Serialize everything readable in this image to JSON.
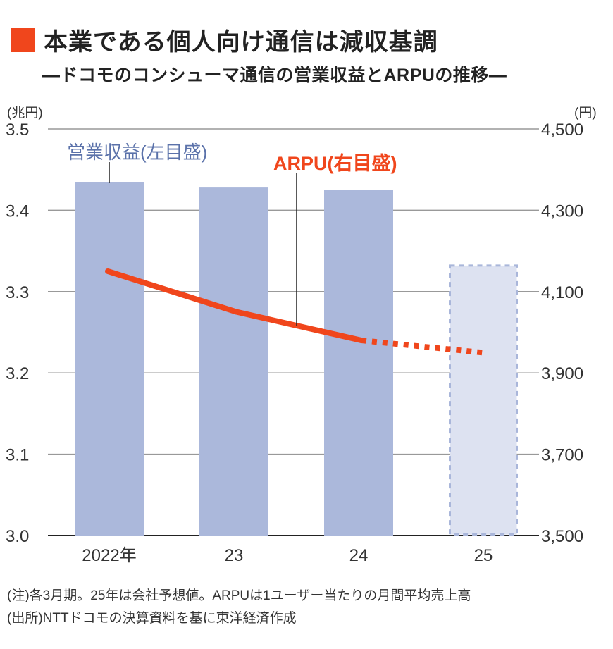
{
  "header": {
    "title": "本業である個人向け通信は減収基調",
    "subtitle": "―ドコモのコンシューマ通信の営業収益とARPUの推移―",
    "accent_color": "#f0461c"
  },
  "axes": {
    "left_unit": "(兆円)",
    "right_unit": "(円)",
    "left_ticks": [
      "3.5",
      "3.4",
      "3.3",
      "3.2",
      "3.1",
      "3.0"
    ],
    "right_ticks": [
      "4,500",
      "4,300",
      "4,100",
      "3,900",
      "3,700",
      "3,500"
    ],
    "x_ticks": [
      "2022年",
      "23",
      "24",
      "25"
    ]
  },
  "legend": {
    "bar_label": "営業収益(左目盛)",
    "line_label": "ARPU(右目盛)"
  },
  "notes": {
    "note": "(注)各3月期。25年は会社予想値。ARPUは1ユーザー当たりの月間平均売上高",
    "source": "(出所)NTTドコモの決算資料を基に東洋経済作成"
  },
  "colors": {
    "bar": "#abb8db",
    "bar_forecast": "#dde2f1",
    "bar_forecast_border": "#a9b6da",
    "line": "#f0461c",
    "grid": "#999999"
  },
  "chart_data": {
    "type": "bar+line",
    "title": "本業である個人向け通信は減収基調",
    "subtitle": "ドコモのコンシューマ通信の営業収益とARPUの推移",
    "categories": [
      "2022",
      "2023",
      "2024",
      "2025"
    ],
    "series": [
      {
        "name": "営業収益(左目盛)",
        "type": "bar",
        "axis": "left",
        "unit": "兆円",
        "values": [
          3.435,
          3.428,
          3.425,
          3.332
        ],
        "forecast": [
          false,
          false,
          false,
          true
        ]
      },
      {
        "name": "ARPU(右目盛)",
        "type": "line",
        "axis": "right",
        "unit": "円",
        "values": [
          4150,
          4050,
          3980,
          3950
        ],
        "forecast": [
          false,
          false,
          false,
          true
        ]
      }
    ],
    "xlabel": "",
    "ylabel_left": "兆円",
    "ylabel_right": "円",
    "ylim_left": [
      3.0,
      3.5
    ],
    "ylim_right": [
      3500,
      4500
    ],
    "grid": true,
    "legend_position": "inline annotations"
  }
}
